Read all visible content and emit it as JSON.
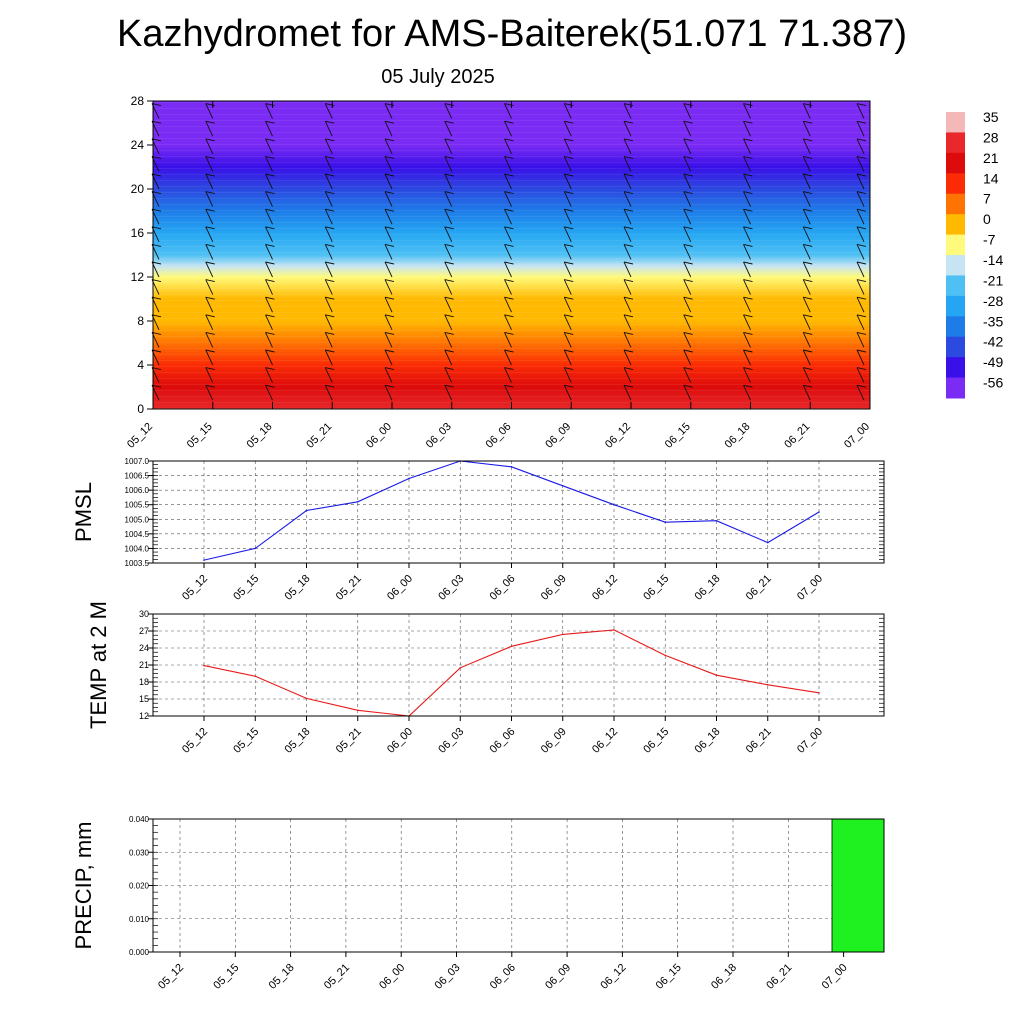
{
  "header": {
    "title": "Kazhydromet for AMS-Baiterek(51.071 71.387)",
    "subtitle": "05 July 2025"
  },
  "time_labels": [
    "05_12",
    "05_15",
    "05_18",
    "05_21",
    "06_00",
    "06_03",
    "06_06",
    "06_09",
    "06_12",
    "06_15",
    "06_18",
    "06_21",
    "07_00"
  ],
  "chart_data": [
    {
      "type": "heatmap",
      "name": "temperature-cross-section",
      "x": [
        "05_12",
        "05_15",
        "05_18",
        "05_21",
        "06_00",
        "06_03",
        "06_06",
        "06_09",
        "06_12",
        "06_15",
        "06_18",
        "06_21",
        "07_00"
      ],
      "ylim": [
        0,
        28
      ],
      "yticks": [
        0,
        4,
        8,
        12,
        16,
        20,
        24,
        28
      ],
      "colorbar": {
        "labels": [
          "35",
          "28",
          "21",
          "14",
          "7",
          "0",
          "-7",
          "-14",
          "-21",
          "-28",
          "-35",
          "-42",
          "-49",
          "-56"
        ],
        "colors": [
          "#f4b8b8",
          "#e8282a",
          "#dd0b0b",
          "#fb2c05",
          "#ff7302",
          "#ffb900",
          "#fffa7c",
          "#c6e4f4",
          "#4fc0f4",
          "#25a6f2",
          "#1e7ce8",
          "#2c49e0",
          "#3a10e8",
          "#7a2bf4"
        ]
      },
      "level_temps": [
        {
          "y": 0,
          "t": 25
        },
        {
          "y": 2,
          "t": 19
        },
        {
          "y": 4,
          "t": 13
        },
        {
          "y": 6,
          "t": 7
        },
        {
          "y": 8,
          "t": 2
        },
        {
          "y": 10,
          "t": -3
        },
        {
          "y": 12,
          "t": -8
        },
        {
          "y": 13,
          "t": -12
        },
        {
          "y": 14,
          "t": -20
        },
        {
          "y": 16,
          "t": -30
        },
        {
          "y": 18,
          "t": -36
        },
        {
          "y": 20,
          "t": -44
        },
        {
          "y": 22,
          "t": -52
        },
        {
          "y": 24,
          "t": -58
        },
        {
          "y": 26,
          "t": -60
        },
        {
          "y": 28,
          "t": -61
        }
      ],
      "wind_barbs": "present at each time step and level"
    },
    {
      "type": "line",
      "name": "pmsl",
      "ylabel": "PMSL",
      "x": [
        "05_12",
        "05_15",
        "05_18",
        "05_21",
        "06_00",
        "06_03",
        "06_06",
        "06_09",
        "06_12",
        "06_15",
        "06_18",
        "06_21",
        "07_00"
      ],
      "values": [
        1003.6,
        1004.0,
        1005.3,
        1005.6,
        1006.4,
        1007.0,
        1006.8,
        1006.15,
        1005.5,
        1004.9,
        1004.95,
        1004.2,
        1005.25
      ],
      "ylim": [
        1003.5,
        1007.0
      ],
      "yticks": [
        "1003.5",
        "1004.0",
        "1004.5",
        "1005.0",
        "1005.5",
        "1006.0",
        "1006.5",
        "1007.0"
      ],
      "color": "#1a1ae6",
      "grid": true
    },
    {
      "type": "line",
      "name": "temp-2m",
      "ylabel": "TEMP at 2 M",
      "x": [
        "05_12",
        "05_15",
        "05_18",
        "05_21",
        "06_00",
        "06_03",
        "06_06",
        "06_09",
        "06_12",
        "06_15",
        "06_18",
        "06_21",
        "07_00"
      ],
      "values": [
        20.9,
        19.0,
        15.1,
        13.0,
        12.0,
        20.5,
        24.3,
        26.4,
        27.2,
        22.7,
        19.2,
        17.5,
        16.1
      ],
      "ylim": [
        12,
        30
      ],
      "yticks": [
        "12",
        "15",
        "18",
        "21",
        "24",
        "27",
        "30"
      ],
      "color": "#e61a1a",
      "grid": true
    },
    {
      "type": "bar",
      "name": "precip",
      "ylabel": "PRECIP, mm",
      "x": [
        "05_12",
        "05_15",
        "05_18",
        "05_21",
        "06_00",
        "06_03",
        "06_06",
        "06_09",
        "06_12",
        "06_15",
        "06_18",
        "06_21",
        "07_00"
      ],
      "values": [
        0,
        0,
        0,
        0,
        0,
        0,
        0,
        0,
        0,
        0,
        0,
        0,
        0.04
      ],
      "ylim": [
        0,
        0.04
      ],
      "yticks": [
        "0.000",
        "0.010",
        "0.020",
        "0.030",
        "0.040"
      ],
      "color": "#1ff01f",
      "grid": true
    }
  ]
}
